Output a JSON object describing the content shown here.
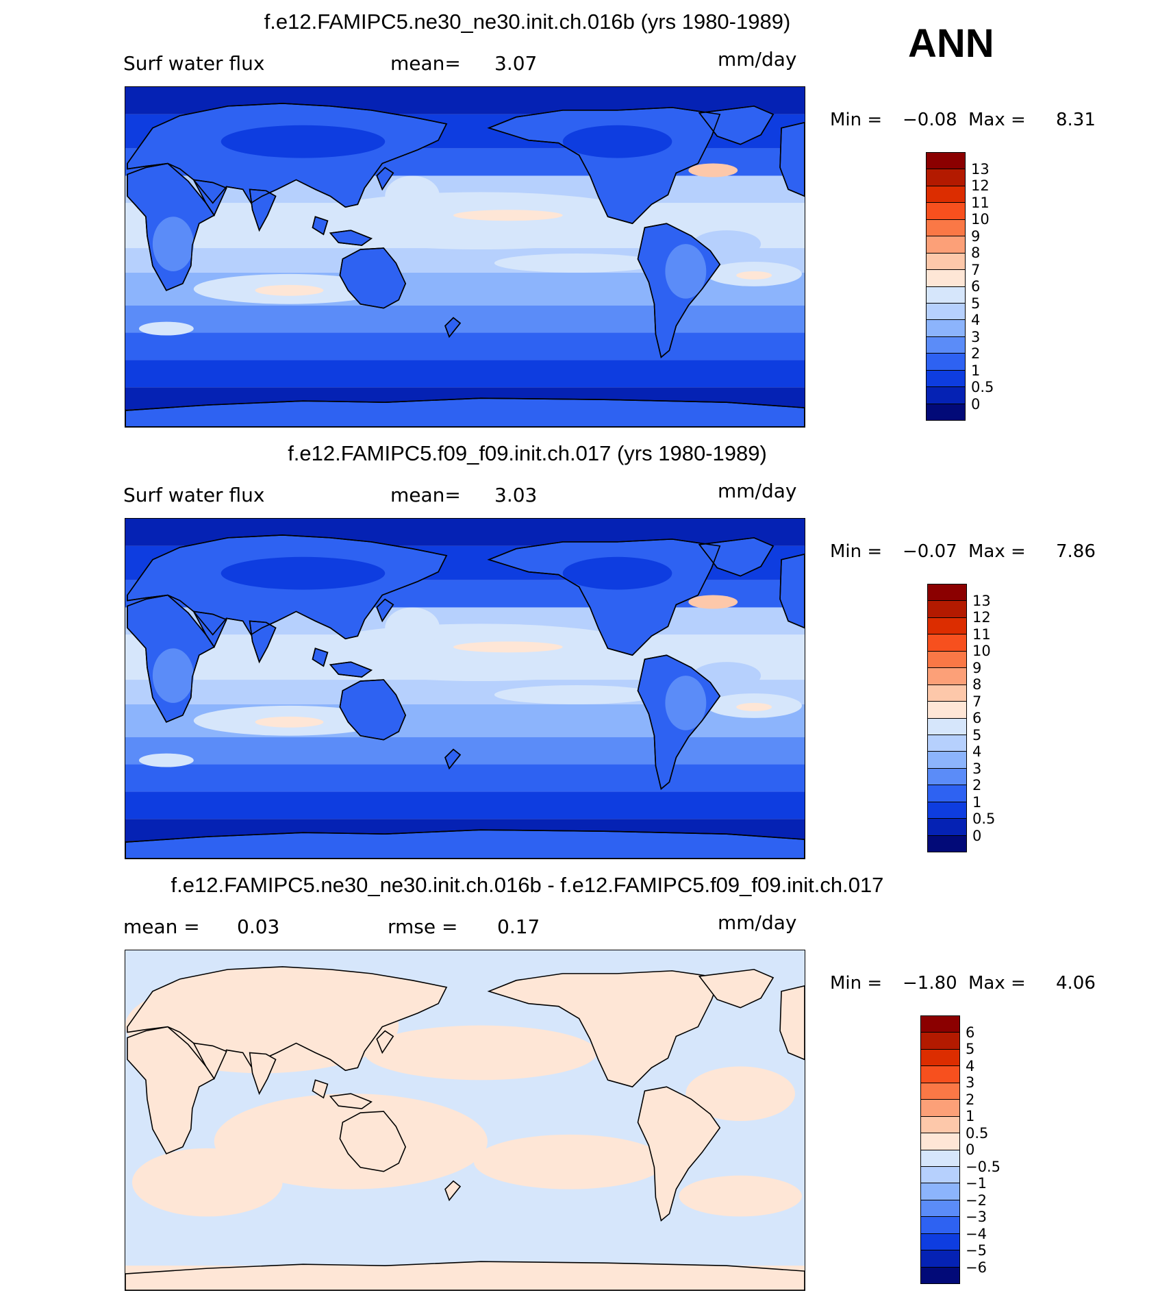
{
  "season": "ANN",
  "units": "mm/day",
  "panels": [
    {
      "title": "f.e12.FAMIPC5.ne30_ne30.init.ch.016b (yrs 1980-1989)",
      "variable": "Surf water flux",
      "mean_label": "mean=",
      "mean_value": "3.07",
      "min_label": "Min =",
      "min_value": "−0.08",
      "max_label": "Max =",
      "max_value": "8.31"
    },
    {
      "title": "f.e12.FAMIPC5.f09_f09.init.ch.017 (yrs 1980-1989)",
      "variable": "Surf water flux",
      "mean_label": "mean=",
      "mean_value": "3.03",
      "min_label": "Min =",
      "min_value": "−0.07",
      "max_label": "Max =",
      "max_value": "7.86"
    },
    {
      "title": "f.e12.FAMIPC5.ne30_ne30.init.ch.016b - f.e12.FAMIPC5.f09_f09.init.ch.017",
      "mean_label": "mean =",
      "mean_value": "0.03",
      "rmse_label": "rmse =",
      "rmse_value": "0.17",
      "min_label": "Min =",
      "min_value": "−1.80",
      "max_label": "Max =",
      "max_value": "4.06"
    }
  ],
  "colorbars": {
    "absolute": {
      "labels": [
        "13",
        "12",
        "11",
        "10",
        "9",
        "8",
        "7",
        "6",
        "5",
        "4",
        "3",
        "2",
        "1",
        "0.5",
        "0"
      ],
      "colors": [
        "#8b0000",
        "#b31a00",
        "#dc2d00",
        "#f7501e",
        "#fa7846",
        "#fca078",
        "#fdc8aa",
        "#fee6d6",
        "#d6e6fb",
        "#b6d0fd",
        "#8cb4fc",
        "#5b8cf8",
        "#2e62f2",
        "#0e3de0",
        "#0522b4",
        "#020a78"
      ]
    },
    "difference": {
      "labels": [
        "6",
        "5",
        "4",
        "3",
        "2",
        "1",
        "0.5",
        "0",
        "−0.5",
        "−1",
        "−2",
        "−3",
        "−4",
        "−5",
        "−6"
      ],
      "colors": [
        "#8b0000",
        "#b31a00",
        "#dc2d00",
        "#f7501e",
        "#fa7846",
        "#fca078",
        "#fdc8aa",
        "#fee6d6",
        "#d6e6fb",
        "#b6d0fd",
        "#8cb4fc",
        "#5b8cf8",
        "#2e62f2",
        "#0e3de0",
        "#0522b4",
        "#020a78"
      ]
    }
  },
  "map_colors": {
    "deep": "#020a78",
    "dark": "#0522b4",
    "mid": "#0e3de0",
    "blue": "#2e62f2",
    "med": "#5b8cf8",
    "light": "#8cb4fc",
    "pale": "#b6d0fd",
    "vpale": "#d6e6fb",
    "peach": "#fee6d6",
    "salmon": "#fdc8aa",
    "diff_pos": "#fee6d6",
    "diff_neg": "#d6e6fb"
  }
}
